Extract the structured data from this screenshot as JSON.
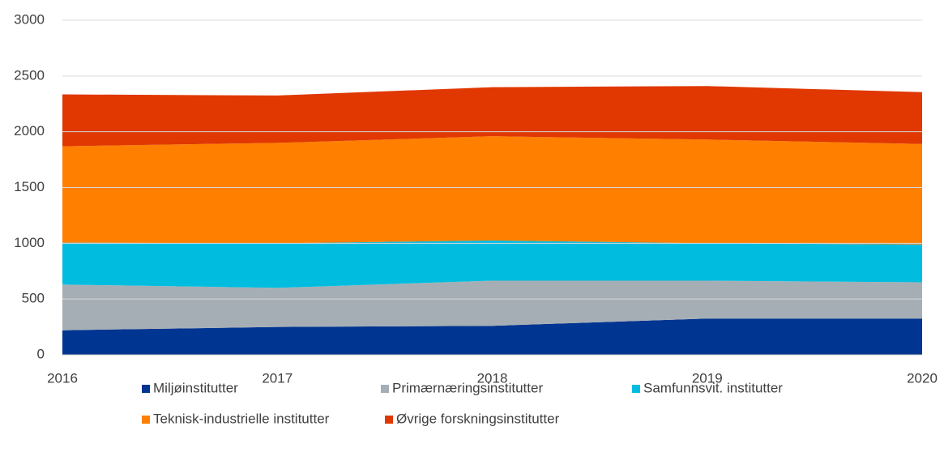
{
  "chart_data": {
    "type": "stacked_area",
    "x": [
      2016,
      2017,
      2018,
      2019,
      2020
    ],
    "xlim": [
      2016,
      2020
    ],
    "xticks": [
      2016,
      2017,
      2018,
      2019,
      2020
    ],
    "ylim": [
      0,
      3000
    ],
    "yticks": [
      0,
      500,
      1000,
      1500,
      2000,
      2500,
      3000
    ],
    "grid": true,
    "legend": "bottom",
    "series": [
      {
        "name": "Miljøinstitutter",
        "color": "#003591",
        "values": [
          220,
          250,
          260,
          325,
          325
        ]
      },
      {
        "name": "Primærnæringsinstitutter",
        "color": "#a6aeb5",
        "values": [
          410,
          350,
          405,
          340,
          325
        ]
      },
      {
        "name": "Samfunnsvit. institutter",
        "color": "#00bde0",
        "values": [
          375,
          400,
          360,
          335,
          340
        ]
      },
      {
        "name": "Teknisk-industrielle institutter",
        "color": "#ff7f00",
        "values": [
          865,
          900,
          935,
          930,
          900
        ]
      },
      {
        "name": "Øvrige forskningsinstitutter",
        "color": "#e03800",
        "values": [
          465,
          425,
          440,
          480,
          465
        ]
      }
    ]
  }
}
